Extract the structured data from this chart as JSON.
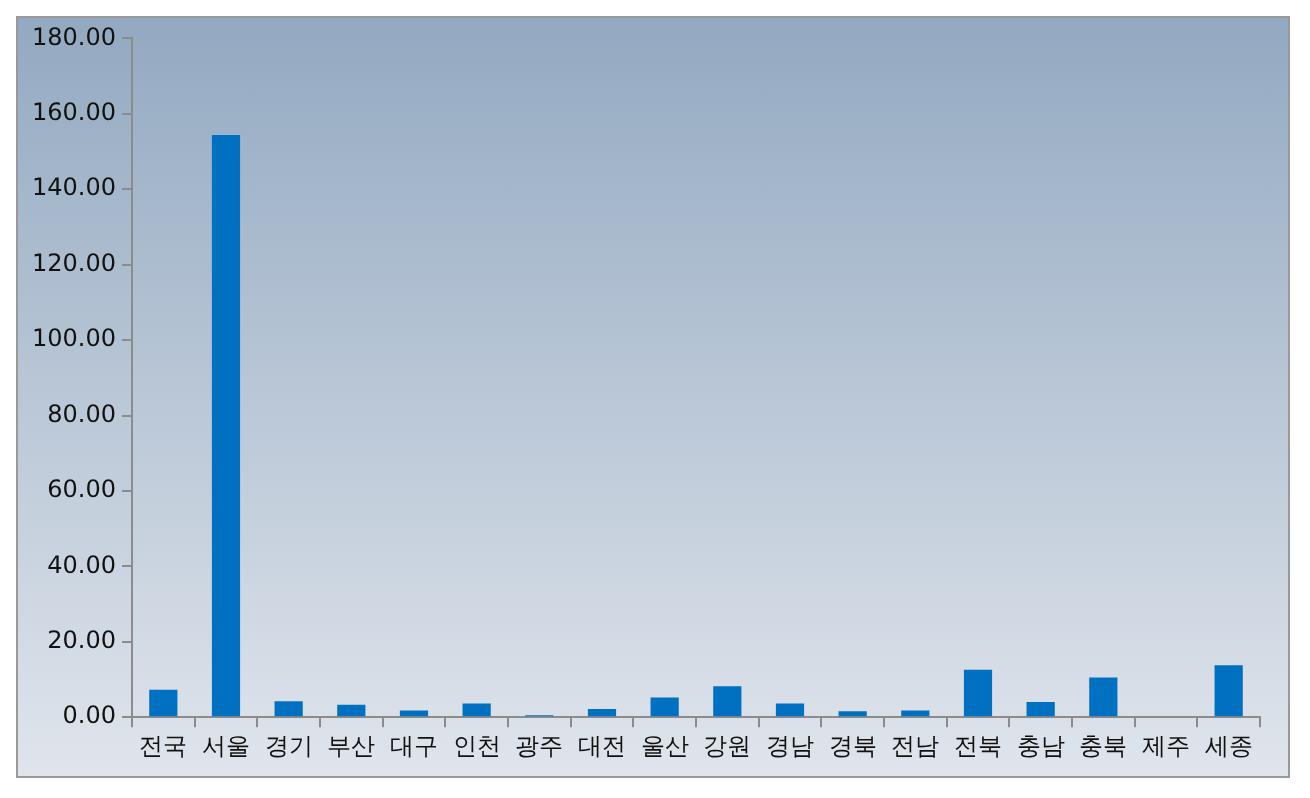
{
  "chart_data": {
    "type": "bar",
    "categories": [
      "전국",
      "서울",
      "경기",
      "부산",
      "대구",
      "인천",
      "광주",
      "대전",
      "울산",
      "강원",
      "경남",
      "경북",
      "전남",
      "전북",
      "충남",
      "충북",
      "제주",
      "세종"
    ],
    "values": [
      7.3,
      154.4,
      4.2,
      3.3,
      1.8,
      3.6,
      0.5,
      2.2,
      5.2,
      8.2,
      3.6,
      1.6,
      1.8,
      12.6,
      4.0,
      10.5,
      0,
      13.8
    ],
    "color": "#0070c0",
    "ylim": [
      0,
      180
    ],
    "yticks": [
      {
        "value": 0,
        "label": "0.00"
      },
      {
        "value": 20,
        "label": "20.00"
      },
      {
        "value": 40,
        "label": "40.00"
      },
      {
        "value": 60,
        "label": "60.00"
      },
      {
        "value": 80,
        "label": "80.00"
      },
      {
        "value": 100,
        "label": "100.00"
      },
      {
        "value": 120,
        "label": "120.00"
      },
      {
        "value": 140,
        "label": "140.00"
      },
      {
        "value": 160,
        "label": "160.00"
      },
      {
        "value": 180,
        "label": "180.00"
      }
    ],
    "grid": false,
    "legend": false
  }
}
